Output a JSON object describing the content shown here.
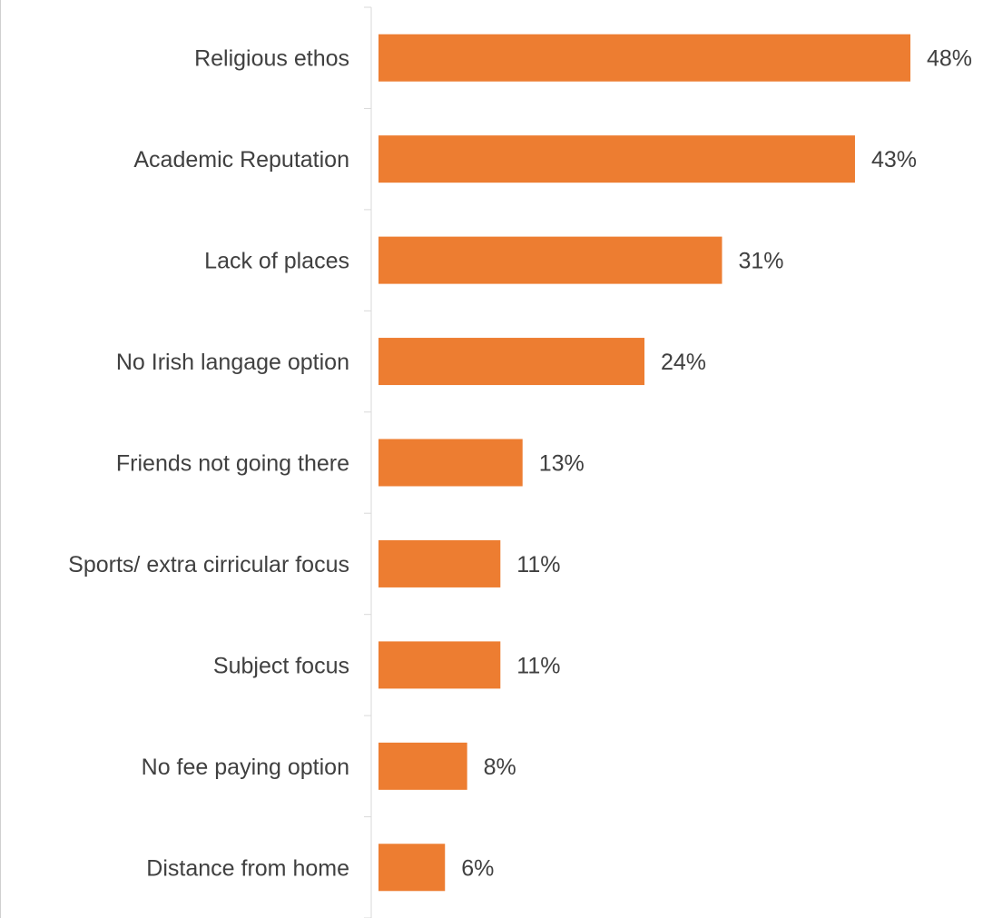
{
  "chart_data": {
    "type": "bar",
    "orientation": "horizontal",
    "categories": [
      "Religious ethos",
      "Academic Reputation",
      "Lack of places",
      "No Irish langage option",
      "Friends not going there",
      "Sports/ extra cirricular focus",
      "Subject focus",
      "No fee paying option",
      "Distance from home"
    ],
    "values": [
      48,
      43,
      31,
      24,
      13,
      11,
      11,
      8,
      6
    ],
    "data_labels": [
      "48%",
      "43%",
      "31%",
      "24%",
      "13%",
      "11%",
      "11%",
      "8%",
      "6%"
    ],
    "value_unit": "%",
    "xlim": [
      0,
      50
    ],
    "grid": false,
    "legend": "none",
    "title": "",
    "xlabel": "",
    "ylabel": ""
  },
  "colors": {
    "bar": "#ED7D31",
    "axis": "#d9d9d9",
    "text": "#404040"
  }
}
